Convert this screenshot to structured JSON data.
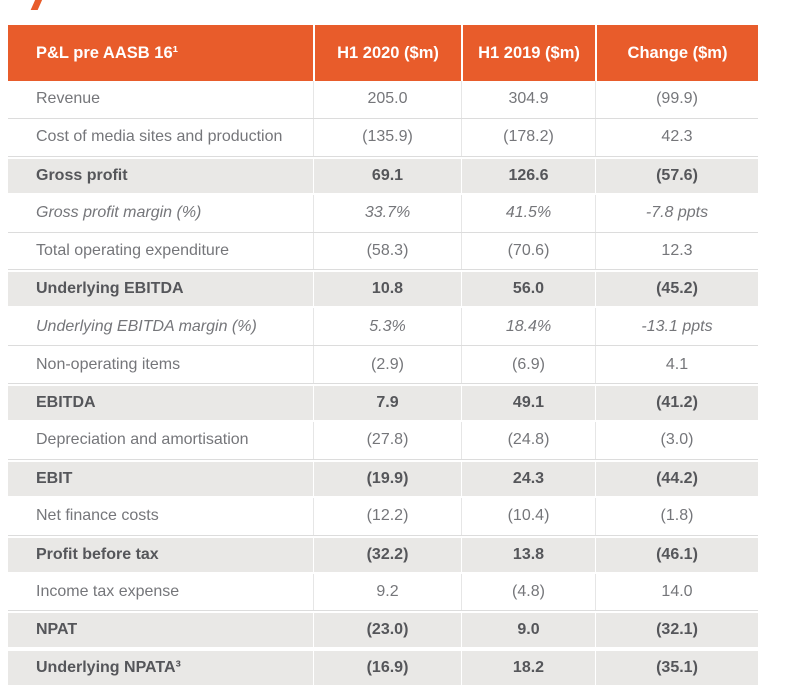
{
  "table": {
    "header": {
      "col1": "P&L pre AASB 16¹",
      "col2": "H1 2020 ($m)",
      "col3": "H1 2019 ($m)",
      "col4": "Change ($m)"
    },
    "rows": [
      {
        "label": "Revenue",
        "h1_2020": "205.0",
        "h1_2019": "304.9",
        "change": "(99.9)",
        "emphasis": "normal"
      },
      {
        "label": "Cost of media sites and production",
        "h1_2020": "(135.9)",
        "h1_2019": "(178.2)",
        "change": "42.3",
        "emphasis": "normal"
      },
      {
        "label": "Gross profit",
        "h1_2020": "69.1",
        "h1_2019": "126.6",
        "change": "(57.6)",
        "emphasis": "subtotal"
      },
      {
        "label": "Gross profit margin (%)",
        "h1_2020": "33.7%",
        "h1_2019": "41.5%",
        "change": "-7.8 ppts",
        "emphasis": "italic"
      },
      {
        "label": "Total operating expenditure",
        "h1_2020": "(58.3)",
        "h1_2019": "(70.6)",
        "change": "12.3",
        "emphasis": "normal"
      },
      {
        "label": "Underlying EBITDA",
        "h1_2020": "10.8",
        "h1_2019": "56.0",
        "change": "(45.2)",
        "emphasis": "subtotal"
      },
      {
        "label": "Underlying EBITDA margin (%)",
        "h1_2020": "5.3%",
        "h1_2019": "18.4%",
        "change": "-13.1 ppts",
        "emphasis": "italic"
      },
      {
        "label": "Non-operating items",
        "h1_2020": "(2.9)",
        "h1_2019": "(6.9)",
        "change": "4.1",
        "emphasis": "normal"
      },
      {
        "label": "EBITDA",
        "h1_2020": "7.9",
        "h1_2019": "49.1",
        "change": "(41.2)",
        "emphasis": "subtotal"
      },
      {
        "label": "Depreciation and amortisation",
        "h1_2020": "(27.8)",
        "h1_2019": "(24.8)",
        "change": "(3.0)",
        "emphasis": "normal"
      },
      {
        "label": "EBIT",
        "h1_2020": "(19.9)",
        "h1_2019": "24.3",
        "change": "(44.2)",
        "emphasis": "subtotal"
      },
      {
        "label": "Net finance costs",
        "h1_2020": "(12.2)",
        "h1_2019": "(10.4)",
        "change": "(1.8)",
        "emphasis": "normal"
      },
      {
        "label": "Profit before tax",
        "h1_2020": "(32.2)",
        "h1_2019": "13.8",
        "change": "(46.1)",
        "emphasis": "subtotal"
      },
      {
        "label": "Income tax expense",
        "h1_2020": "9.2",
        "h1_2019": "(4.8)",
        "change": "14.0",
        "emphasis": "normal"
      },
      {
        "label": "NPAT",
        "h1_2020": "(23.0)",
        "h1_2019": "9.0",
        "change": "(32.1)",
        "emphasis": "subtotal"
      },
      {
        "label": "Underlying NPATA³",
        "h1_2020": "(16.9)",
        "h1_2019": "18.2",
        "change": "(35.1)",
        "emphasis": "subtotal"
      }
    ]
  },
  "colors": {
    "header_bg": "#E85C2B",
    "header_text": "#FFFFFF",
    "subtotal_row_bg": "#E9E8E6",
    "body_text": "#75767A",
    "subtotal_text": "#55565A",
    "divider": "#DCDCDC"
  }
}
